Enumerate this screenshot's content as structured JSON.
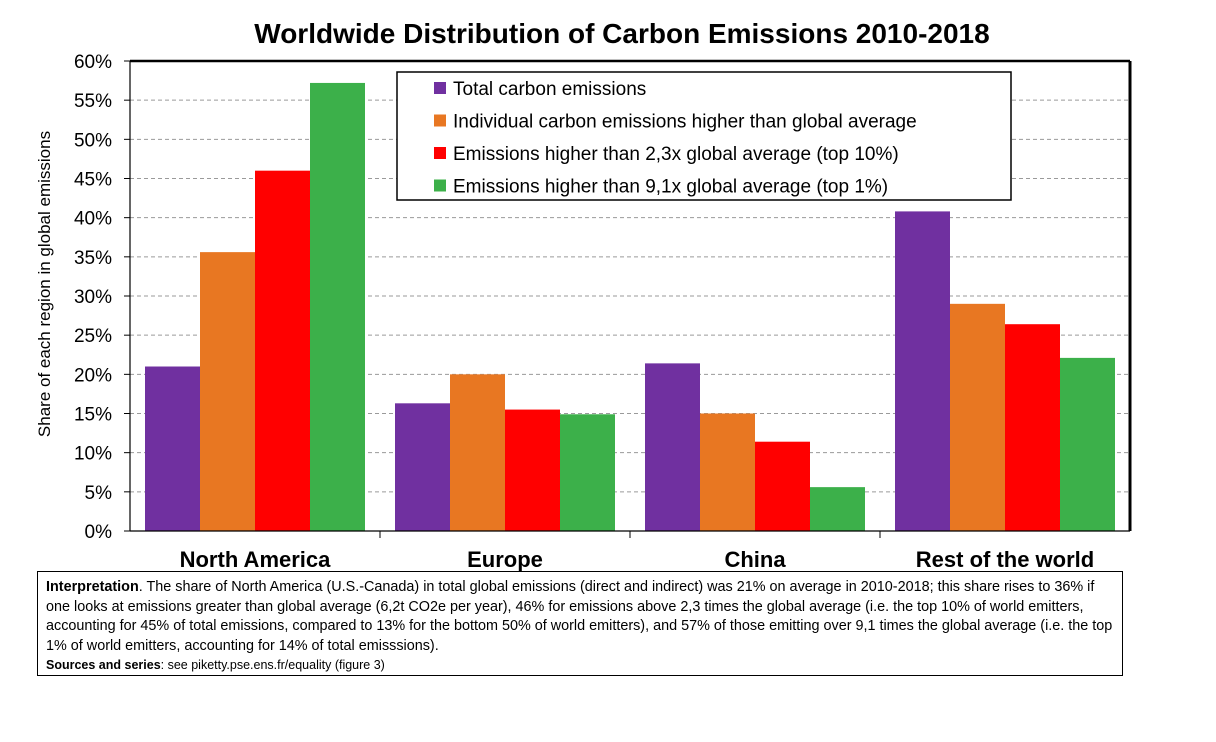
{
  "chart_data": {
    "type": "bar",
    "title": "Worldwide Distribution of Carbon Emissions 2010-2018",
    "ylabel": "Share of each region in global emissions",
    "xlabel": "",
    "ylim": [
      0,
      60
    ],
    "yticks": [
      0,
      5,
      10,
      15,
      20,
      25,
      30,
      35,
      40,
      45,
      50,
      55,
      60
    ],
    "ytick_labels": [
      "0%",
      "5%",
      "10%",
      "15%",
      "20%",
      "25%",
      "30%",
      "35%",
      "40%",
      "45%",
      "50%",
      "55%",
      "60%"
    ],
    "grid": true,
    "legend_position": "top-center",
    "categories": [
      "North America",
      "Europe",
      "China",
      "Rest of the world"
    ],
    "series": [
      {
        "name": "Total carbon emissions",
        "color": "#7030a0",
        "values": [
          21,
          16.3,
          21.4,
          40.8
        ]
      },
      {
        "name": "Individual carbon emissions higher than global average",
        "color": "#e87722",
        "values": [
          35.6,
          20,
          15,
          29
        ]
      },
      {
        "name": "Emissions higher than 2,3x global average (top 10%)",
        "color": "#ff0000",
        "values": [
          46,
          15.5,
          11.4,
          26.4
        ]
      },
      {
        "name": "Emissions higher than 9,1x global average (top 1%)",
        "color": "#3cb04a",
        "values": [
          57.2,
          14.9,
          5.6,
          22.1
        ]
      }
    ]
  },
  "note": {
    "lead": "Interpretation",
    "text": ". The share of North America (U.S.-Canada) in total global emissions (direct and indirect) was 21% on average in 2010-2018; this share rises to 36% if one looks at emissions greater than global average (6,2t CO2e per year), 46% for emissions above 2,3 times the global average (i.e. the top 10% of world emitters, accounting for 45% of total emissions, compared to 13% for the bottom 50% of world emitters), and 57% of those emitting over 9,1 times the global average (i.e. the top 1% of world emitters, accounting for 14% of total emisssions).",
    "source_lead": "Sources and series",
    "source_text": ": see piketty.pse.ens.fr/equality (figure 3)"
  }
}
